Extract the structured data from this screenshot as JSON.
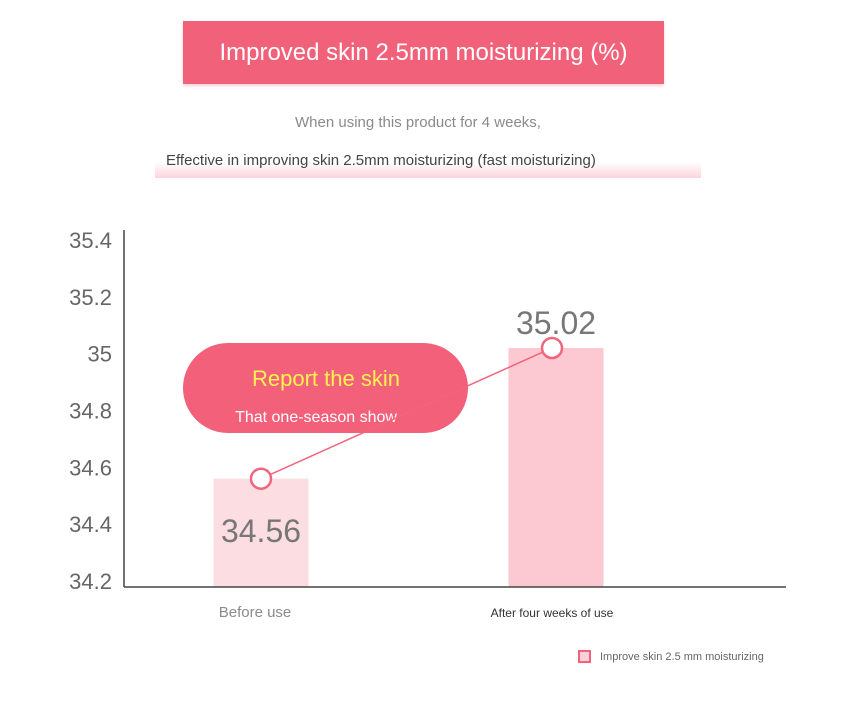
{
  "banner": {
    "title": "Improved skin 2.5mm moisturizing (%)"
  },
  "subtitle_line1": "When using this product for 4 weeks,",
  "subtitle_line2": "Effective in improving skin 2.5mm moisturizing (fast moisturizing)",
  "callout": {
    "title": "Report the skin",
    "subtitle": "That one-season show"
  },
  "colors": {
    "banner": "#f2617a",
    "bar_before": "#fcdde2",
    "bar_after": "#fcc8d1",
    "line": "#f0667c",
    "callout": "#f2607a",
    "callout_title": "#fff34e",
    "axis_text": "#666666"
  },
  "chart_data": {
    "type": "bar",
    "categories": [
      "Before use",
      "After four weeks of use"
    ],
    "series": [
      {
        "name": "Improve skin 2.5 mm moisturizing",
        "values": [
          34.56,
          35.02
        ]
      }
    ],
    "data_labels": [
      "34.56",
      "35.02"
    ],
    "overlay": "line-with-circle-markers",
    "ylim": [
      34.2,
      35.4
    ],
    "yticks": [
      34.2,
      34.4,
      34.6,
      34.8,
      35,
      35.2,
      35.4
    ],
    "ytick_labels": [
      "34.2",
      "34.4",
      "34.6",
      "34.8",
      "35",
      "35.2",
      "35.4"
    ],
    "grid": false,
    "legend_position": "bottom-right"
  }
}
